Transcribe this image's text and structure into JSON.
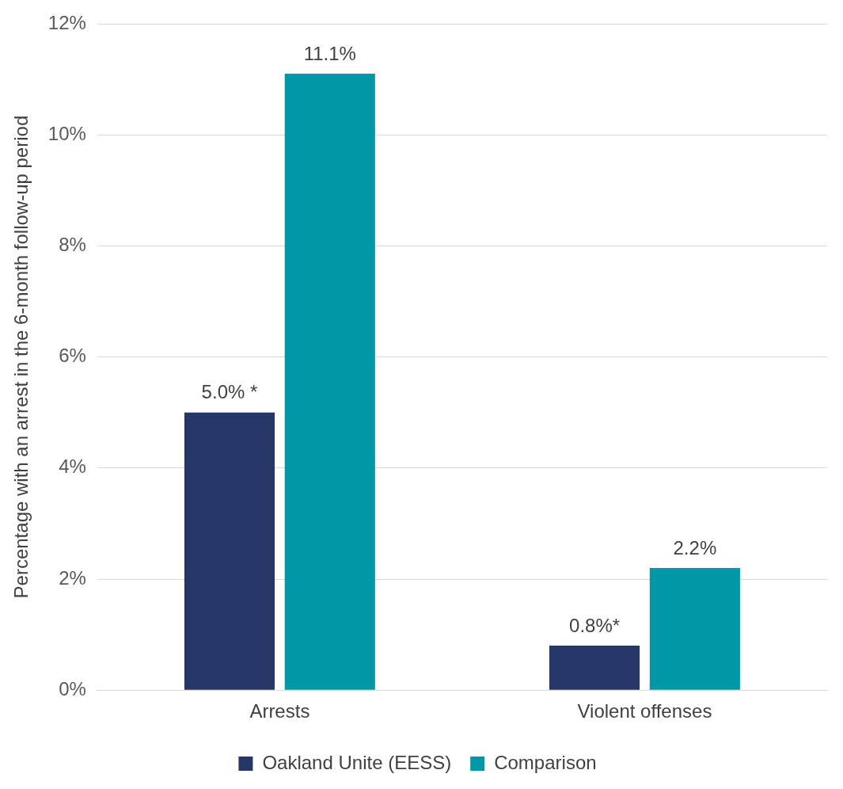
{
  "chart_data": {
    "type": "bar",
    "ylabel": "Percentage with an arrest in the 6-month follow-up period",
    "categories": [
      "Arrests",
      "Violent offenses"
    ],
    "series": [
      {
        "name": "Oakland Unite (EESS)",
        "color": "#253667",
        "values": [
          5.0,
          0.8
        ],
        "value_labels": [
          "5.0% *",
          "0.8%*"
        ]
      },
      {
        "name": "Comparison",
        "color": "#0097a7",
        "values": [
          11.1,
          2.2
        ],
        "value_labels": [
          "11.1%",
          "2.2%"
        ]
      }
    ],
    "ylim": [
      0,
      12
    ],
    "yticks": [
      {
        "value": 0,
        "label": "0%"
      },
      {
        "value": 2,
        "label": "2%"
      },
      {
        "value": 4,
        "label": "4%"
      },
      {
        "value": 6,
        "label": "6%"
      },
      {
        "value": 8,
        "label": "8%"
      },
      {
        "value": 10,
        "label": "10%"
      },
      {
        "value": 12,
        "label": "12%"
      }
    ],
    "grid": "y",
    "legend": "bottom"
  }
}
